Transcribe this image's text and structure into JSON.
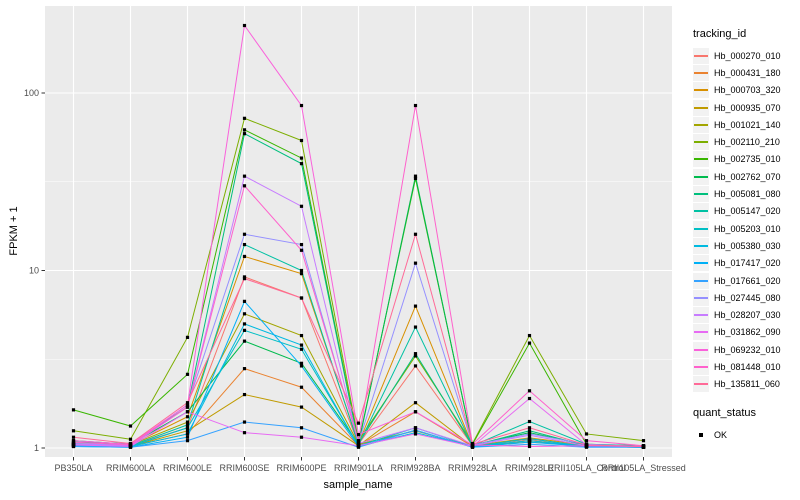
{
  "y_axis": {
    "title": "FPKM + 1",
    "ticks": [
      "1",
      "10",
      "100"
    ],
    "tick_values": [
      1,
      10,
      100
    ]
  },
  "x_axis": {
    "title": "sample_name"
  },
  "legend": {
    "tracking_title": "tracking_id",
    "quant_title": "quant_status",
    "quant_items": [
      {
        "label": "OK"
      }
    ]
  },
  "style": {
    "panel_bg": "#EBEBEB",
    "grid_color": "#FFFFFF",
    "tick_color": "#333333",
    "tick_label_color": "#4D4D4D",
    "point_color": "#000000",
    "legend_key_bg": "#F2F2F2"
  },
  "chart_data": {
    "type": "line",
    "scale": "log10",
    "grid": "on",
    "legend_position": "right",
    "title": "",
    "xlabel": "sample_name",
    "ylabel": "FPKM + 1",
    "ylim": [
      1,
      300
    ],
    "y_breaks": [
      1,
      10,
      100
    ],
    "categories": [
      "PB350LA",
      "RRIM600LA",
      "RRIM600LE",
      "RRIM600SE",
      "RRIM600PE",
      "RRIM901LA",
      "RRIM928BA",
      "RRIM928LA",
      "RRIM928LE",
      "RRII105LA_Control",
      "RRII105LA_Stressed"
    ],
    "quant_status": "OK",
    "series": [
      {
        "name": "Hb_000270_010",
        "color": "#F8766D",
        "values": [
          1.05,
          1.03,
          1.3,
          9.2,
          7.0,
          1.05,
          2.9,
          1.03,
          1.12,
          1.03,
          1.02
        ]
      },
      {
        "name": "Hb_000431_180",
        "color": "#EA8331",
        "values": [
          1.03,
          1.02,
          1.2,
          2.8,
          2.2,
          1.03,
          1.6,
          1.02,
          1.1,
          1.02,
          1.01
        ]
      },
      {
        "name": "Hb_000703_320",
        "color": "#D89000",
        "values": [
          1.05,
          1.04,
          1.5,
          12.0,
          9.6,
          1.06,
          6.3,
          1.03,
          1.14,
          1.04,
          1.02
        ]
      },
      {
        "name": "Hb_000935_070",
        "color": "#C09B00",
        "values": [
          1.04,
          1.02,
          1.25,
          2.0,
          1.7,
          1.03,
          1.8,
          1.02,
          1.1,
          1.02,
          1.01
        ]
      },
      {
        "name": "Hb_001021_140",
        "color": "#A3A500",
        "values": [
          1.06,
          1.04,
          1.4,
          5.7,
          4.3,
          1.05,
          1.25,
          1.02,
          1.08,
          1.03,
          1.02
        ]
      },
      {
        "name": "Hb_002110_210",
        "color": "#7CAE00",
        "values": [
          1.25,
          1.12,
          4.2,
          72,
          54,
          1.1,
          3.3,
          1.06,
          4.3,
          1.2,
          1.1
        ]
      },
      {
        "name": "Hb_002735_010",
        "color": "#39B600",
        "values": [
          1.64,
          1.33,
          2.6,
          62,
          43,
          1.07,
          33,
          1.05,
          3.9,
          1.05,
          1.03
        ]
      },
      {
        "name": "Hb_002762_070",
        "color": "#00BB4E",
        "values": [
          1.1,
          1.05,
          1.6,
          4.0,
          3.0,
          1.05,
          34,
          1.04,
          1.22,
          1.04,
          1.02
        ]
      },
      {
        "name": "Hb_005081_080",
        "color": "#00BF7D",
        "values": [
          1.08,
          1.06,
          1.7,
          59,
          40,
          1.06,
          3.4,
          1.03,
          1.25,
          1.03,
          1.02
        ]
      },
      {
        "name": "Hb_005147_020",
        "color": "#00C1A3",
        "values": [
          1.05,
          1.03,
          1.35,
          14,
          10,
          1.04,
          4.8,
          1.03,
          1.41,
          1.05,
          1.03
        ]
      },
      {
        "name": "Hb_005203_010",
        "color": "#00BFC4",
        "values": [
          1.04,
          1.02,
          1.3,
          4.6,
          3.6,
          1.03,
          1.3,
          1.02,
          1.13,
          1.02,
          1.01
        ]
      },
      {
        "name": "Hb_005380_030",
        "color": "#00BAE0",
        "values": [
          1.03,
          1.02,
          1.2,
          5.0,
          3.8,
          1.02,
          1.22,
          1.02,
          1.1,
          1.02,
          1.01
        ]
      },
      {
        "name": "Hb_017417_020",
        "color": "#00B0F6",
        "values": [
          1.02,
          1.01,
          1.15,
          6.7,
          2.9,
          1.02,
          1.26,
          1.01,
          1.08,
          1.02,
          1.01
        ]
      },
      {
        "name": "Hb_017661_020",
        "color": "#35A2FF",
        "values": [
          1.02,
          1.01,
          1.1,
          1.4,
          1.3,
          1.01,
          1.26,
          1.01,
          1.05,
          1.01,
          1.01
        ]
      },
      {
        "name": "Hb_027445_080",
        "color": "#9590FF",
        "values": [
          1.06,
          1.04,
          1.75,
          16,
          14,
          1.07,
          11,
          1.04,
          1.2,
          1.05,
          1.02
        ]
      },
      {
        "name": "Hb_028207_030",
        "color": "#C77CFF",
        "values": [
          1.05,
          1.03,
          1.7,
          34,
          23,
          1.06,
          1.3,
          1.03,
          1.18,
          1.03,
          1.02
        ]
      },
      {
        "name": "Hb_031862_090",
        "color": "#E76BF3",
        "values": [
          1.04,
          1.02,
          1.6,
          1.22,
          1.15,
          1.03,
          1.2,
          1.02,
          1.9,
          1.04,
          1.02
        ]
      },
      {
        "name": "Hb_069232_010",
        "color": "#FA62DB",
        "values": [
          1.1,
          1.05,
          1.75,
          240,
          85,
          1.19,
          1.6,
          1.04,
          1.02,
          1.03,
          1.02
        ]
      },
      {
        "name": "Hb_081448_010",
        "color": "#FF61CC",
        "values": [
          1.08,
          1.04,
          1.7,
          30,
          13,
          1.1,
          85,
          1.05,
          2.1,
          1.1,
          1.03
        ]
      },
      {
        "name": "Hb_135811_060",
        "color": "#FF6A98",
        "values": [
          1.15,
          1.06,
          1.8,
          9.0,
          7.0,
          1.38,
          16,
          1.05,
          1.3,
          1.04,
          1.02
        ]
      }
    ]
  }
}
